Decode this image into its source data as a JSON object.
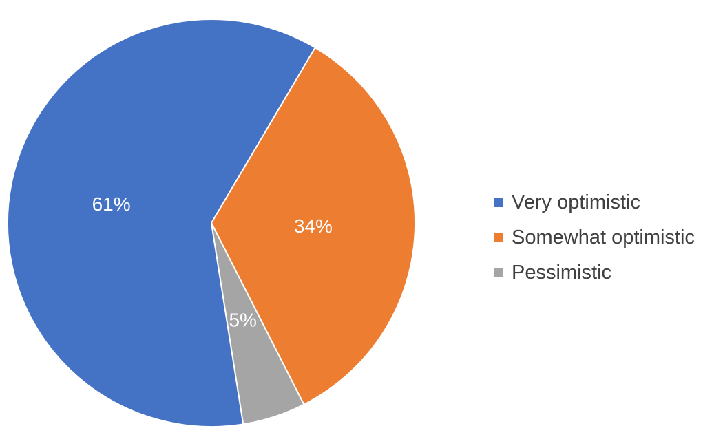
{
  "chart_data": {
    "type": "pie",
    "title": "",
    "categories": [
      "Very optimistic",
      "Somewhat optimistic",
      "Pessimistic"
    ],
    "values": [
      61,
      34,
      5
    ],
    "labels": [
      "61%",
      "34%",
      "5%"
    ],
    "colors": [
      "#4472C4",
      "#ED7D31",
      "#A5A5A5"
    ],
    "label_color": "#FFFFFF",
    "legend_position": "right",
    "start_angle_deg": 171
  }
}
